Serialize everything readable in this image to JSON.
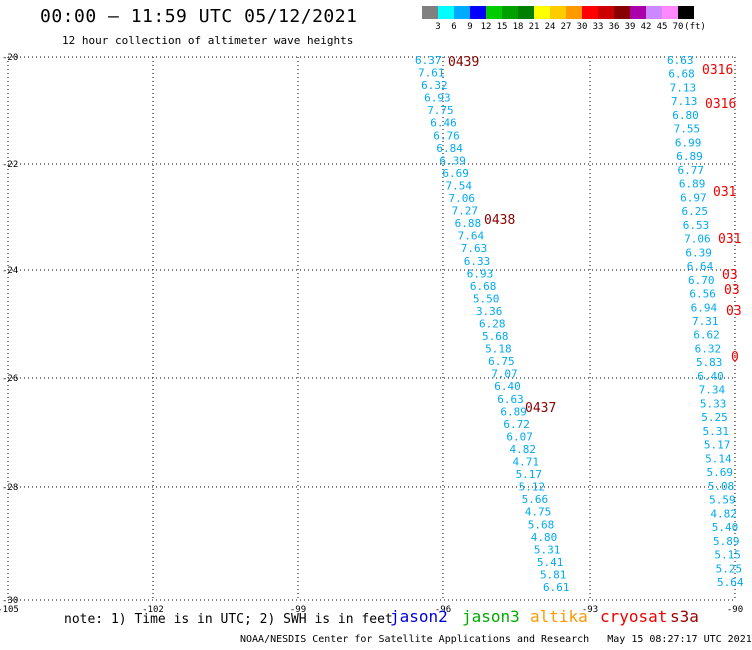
{
  "header": {
    "title": "00:00 — 11:59 UTC 05/12/2021",
    "subtitle": "12 hour collection of altimeter wave heights"
  },
  "colorbar": {
    "unit_label": "(ft)",
    "labels": [
      "3",
      "6",
      "9",
      "12",
      "15",
      "18",
      "21",
      "24",
      "27",
      "30",
      "33",
      "36",
      "39",
      "42",
      "45",
      "70"
    ],
    "colors": [
      "#808080",
      "#00ffff",
      "#00aaff",
      "#0000ff",
      "#00cc00",
      "#00a000",
      "#008000",
      "#ffff00",
      "#ffcc00",
      "#ff9900",
      "#ff0000",
      "#cc0000",
      "#880000",
      "#aa00aa",
      "#cc88ff",
      "#ff88ff",
      "#000000"
    ]
  },
  "axes": {
    "lat_labels": [
      "-20",
      "-22",
      "-24",
      "-26",
      "-28",
      "-30"
    ],
    "lon_labels": [
      "-105",
      "-102",
      "-99",
      "-96",
      "-93",
      "-90"
    ]
  },
  "tracks": {
    "track1": {
      "color": "#00aaee",
      "values": [
        "6.37",
        "7.61",
        "6.32",
        "6.93",
        "7.75",
        "6.46",
        "6.76",
        "6.84",
        "6.39",
        "6.69",
        "7.54",
        "7.06",
        "7.27",
        "6.88",
        "7.64",
        "7.63",
        "6.33",
        "6.93",
        "6.68",
        "5.50",
        "3.36",
        "6.28",
        "5.68",
        "5.18",
        "6.75",
        "7.07",
        "6.40",
        "6.63",
        "6.89",
        "6.72",
        "6.07",
        "4.82",
        "4.71",
        "5.17",
        "5.12",
        "5.66",
        "4.75",
        "5.68",
        "4.80",
        "5.31",
        "5.41",
        "5.81",
        "6.61"
      ],
      "times": [
        "0439",
        "0438",
        "0437"
      ]
    },
    "track2": {
      "color": "#00aaee",
      "values": [
        "6.63",
        "6.68",
        "7.13",
        "7.13",
        "6.80",
        "7.55",
        "6.99",
        "6.89",
        "6.77",
        "6.89",
        "6.97",
        "6.25",
        "6.53",
        "7.06",
        "6.39",
        "6.64",
        "6.70",
        "6.56",
        "6.94",
        "7.31",
        "6.62",
        "6.32",
        "5.83",
        "6.40",
        "7.34",
        "5.33",
        "5.25",
        "5.31",
        "5.17",
        "5.14",
        "5.69",
        "5.08",
        "5.59",
        "4.82",
        "5.40",
        "5.89",
        "5.15",
        "5.25",
        "5.64"
      ],
      "times": [
        "0316",
        "0316",
        "031",
        "031",
        "03",
        "03",
        "03",
        "0"
      ]
    }
  },
  "footer": {
    "note": "note: 1) Time is in UTC; 2) SWH is in feet",
    "credit": "NOAA/NESDIS Center for Satellite Applications and Research   May 15 08:27:17 UTC 2021"
  },
  "legend": [
    {
      "label": "jason2",
      "color": "#0000dd"
    },
    {
      "label": "jason3",
      "color": "#00aa00"
    },
    {
      "label": "altika",
      "color": "#ff9900"
    },
    {
      "label": "cryosat",
      "color": "#ee0000"
    },
    {
      "label": "s3a",
      "color": "#990000"
    }
  ]
}
